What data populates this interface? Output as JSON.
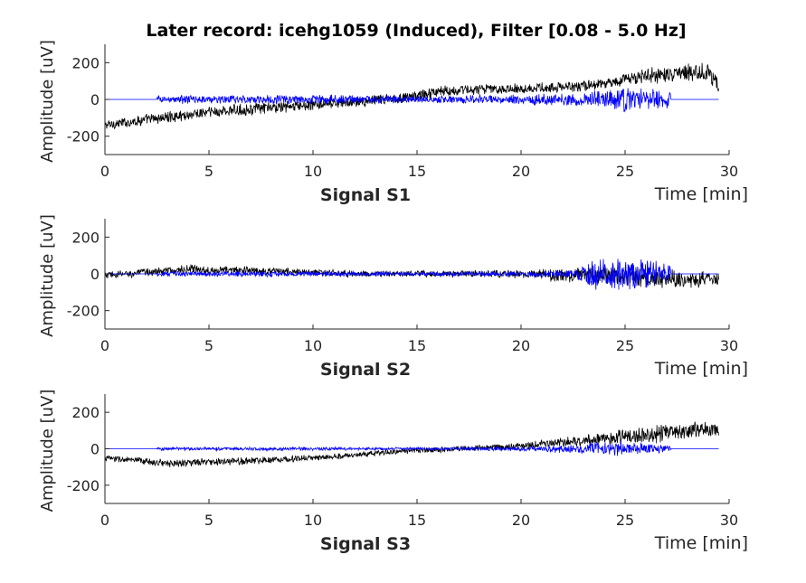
{
  "figure": {
    "title": "Later record: icehg1059 (Induced), Filter [0.08 - 5.0 Hz]"
  },
  "chart_data": [
    {
      "type": "line",
      "subtitle": "Signal S1",
      "xlabel": "Time [min]",
      "ylabel": "Amplitude [uV]",
      "xlim": [
        0,
        30
      ],
      "ylim": [
        -300,
        300
      ],
      "xticks": [
        "0",
        "5",
        "10",
        "15",
        "20",
        "25",
        "30"
      ],
      "yticks": [
        "-200",
        "0",
        "200"
      ],
      "grid": false,
      "series": [
        {
          "color": "#000000",
          "t_range": [
            0,
            29.5
          ],
          "trend": [
            [
              0,
              -140
            ],
            [
              2,
              -110
            ],
            [
              5,
              -70
            ],
            [
              8,
              -45
            ],
            [
              10,
              -30
            ],
            [
              12,
              -15
            ],
            [
              14,
              5
            ],
            [
              15,
              20
            ],
            [
              16,
              45
            ],
            [
              18,
              55
            ],
            [
              20,
              60
            ],
            [
              22,
              65
            ],
            [
              24,
              85
            ],
            [
              25,
              110
            ],
            [
              26,
              130
            ],
            [
              27,
              130
            ],
            [
              28,
              145
            ],
            [
              29,
              150
            ],
            [
              29.5,
              75
            ]
          ],
          "noise_amplitude": [
            [
              0,
              22
            ],
            [
              5,
              28
            ],
            [
              10,
              25
            ],
            [
              15,
              25
            ],
            [
              20,
              22
            ],
            [
              25,
              30
            ],
            [
              29.5,
              45
            ]
          ]
        },
        {
          "color": "#0000ff",
          "t_range": [
            0,
            29.5
          ],
          "active_range": [
            2.5,
            27.2
          ],
          "trend": [
            [
              0,
              0
            ],
            [
              29.5,
              0
            ]
          ],
          "noise_amplitude": [
            [
              2.5,
              18
            ],
            [
              10,
              22
            ],
            [
              15,
              16
            ],
            [
              20,
              22
            ],
            [
              23,
              35
            ],
            [
              25,
              55
            ],
            [
              27.2,
              40
            ]
          ]
        }
      ]
    },
    {
      "type": "line",
      "subtitle": "Signal S2",
      "xlabel": "Time [min]",
      "ylabel": "Amplitude [uV]",
      "xlim": [
        0,
        30
      ],
      "ylim": [
        -300,
        300
      ],
      "xticks": [
        "0",
        "5",
        "10",
        "15",
        "20",
        "25",
        "30"
      ],
      "yticks": [
        "-200",
        "0",
        "200"
      ],
      "grid": false,
      "series": [
        {
          "color": "#000000",
          "t_range": [
            0,
            29.5
          ],
          "trend": [
            [
              0,
              -10
            ],
            [
              2,
              10
            ],
            [
              4,
              25
            ],
            [
              8,
              15
            ],
            [
              12,
              0
            ],
            [
              16,
              0
            ],
            [
              20,
              0
            ],
            [
              22,
              -10
            ],
            [
              24,
              -10
            ],
            [
              26,
              -20
            ],
            [
              28,
              -30
            ],
            [
              29.5,
              -30
            ]
          ],
          "noise_amplitude": [
            [
              0,
              18
            ],
            [
              5,
              20
            ],
            [
              10,
              16
            ],
            [
              15,
              14
            ],
            [
              20,
              18
            ],
            [
              23,
              40
            ],
            [
              25,
              50
            ],
            [
              27,
              40
            ],
            [
              29.5,
              38
            ]
          ]
        },
        {
          "color": "#0000ff",
          "t_range": [
            0,
            29.5
          ],
          "active_range": [
            2.5,
            27.2
          ],
          "trend": [
            [
              0,
              0
            ],
            [
              29.5,
              0
            ]
          ],
          "noise_amplitude": [
            [
              2.5,
              12
            ],
            [
              10,
              12
            ],
            [
              15,
              10
            ],
            [
              20,
              12
            ],
            [
              22.5,
              18
            ],
            [
              23.5,
              65
            ],
            [
              25,
              75
            ],
            [
              27.2,
              50
            ]
          ]
        }
      ]
    },
    {
      "type": "line",
      "subtitle": "Signal S3",
      "xlabel": "Time [min]",
      "ylabel": "Amplitude [uV]",
      "xlim": [
        0,
        30
      ],
      "ylim": [
        -300,
        300
      ],
      "xticks": [
        "0",
        "5",
        "10",
        "15",
        "20",
        "25",
        "30"
      ],
      "yticks": [
        "-200",
        "0",
        "200"
      ],
      "grid": false,
      "series": [
        {
          "color": "#000000",
          "t_range": [
            0,
            29.5
          ],
          "trend": [
            [
              0,
              -50
            ],
            [
              3,
              -80
            ],
            [
              6,
              -70
            ],
            [
              10,
              -50
            ],
            [
              12,
              -35
            ],
            [
              14,
              -15
            ],
            [
              16,
              -5
            ],
            [
              18,
              5
            ],
            [
              20,
              15
            ],
            [
              22,
              35
            ],
            [
              24,
              55
            ],
            [
              26,
              75
            ],
            [
              28,
              100
            ],
            [
              29.5,
              110
            ]
          ],
          "noise_amplitude": [
            [
              0,
              15
            ],
            [
              5,
              18
            ],
            [
              10,
              14
            ],
            [
              15,
              12
            ],
            [
              20,
              15
            ],
            [
              24,
              30
            ],
            [
              26,
              40
            ],
            [
              29.5,
              35
            ]
          ]
        },
        {
          "color": "#0000ff",
          "t_range": [
            0,
            29.5
          ],
          "active_range": [
            2.5,
            27.2
          ],
          "trend": [
            [
              0,
              0
            ],
            [
              29.5,
              0
            ]
          ],
          "noise_amplitude": [
            [
              2.5,
              8
            ],
            [
              10,
              8
            ],
            [
              15,
              6
            ],
            [
              20,
              10
            ],
            [
              23,
              25
            ],
            [
              25,
              35
            ],
            [
              27.2,
              15
            ]
          ]
        }
      ]
    }
  ]
}
